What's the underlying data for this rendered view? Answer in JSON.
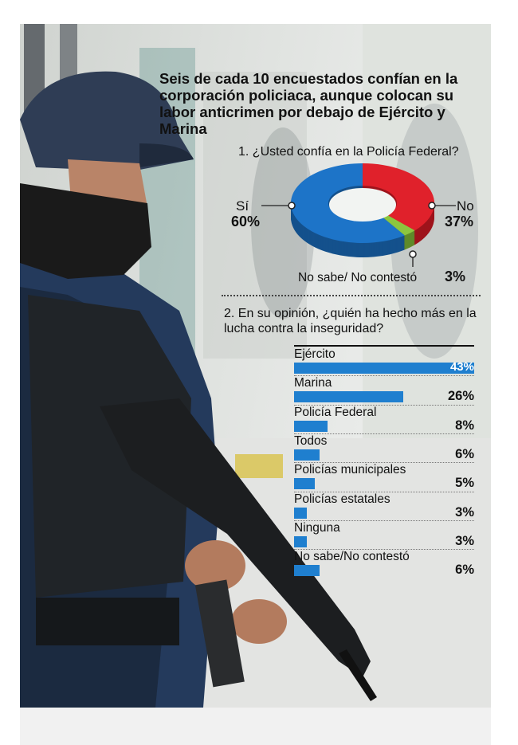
{
  "headline": "Seis de cada 10 encuestados confían en la corporación policiaca, aunque colocan su labor anticrimen por debajo de Ejército y Marina",
  "colors": {
    "si": "#1d74c8",
    "no": "#e0212b",
    "nosabe": "#8cc63f",
    "bar": "#1f7fcf"
  },
  "chart_data": [
    {
      "type": "pie",
      "title": "1. ¿Usted confía en la Policía Federal?",
      "labels": [
        "Sí",
        "No",
        "No sabe/ No contestó"
      ],
      "values": [
        60,
        37,
        3
      ],
      "value_labels": [
        "60%",
        "37%",
        "3%"
      ]
    },
    {
      "type": "bar",
      "title": "2. En su opinión, ¿quién ha hecho más en la lucha contra la inseguridad?",
      "categories": [
        "Ejército",
        "Marina",
        "Policía Federal",
        "Todos",
        "Policías municipales",
        "Policías estatales",
        "Ninguna",
        "No sabe/No contestó"
      ],
      "values": [
        43,
        26,
        8,
        6,
        5,
        3,
        3,
        6
      ],
      "value_labels": [
        "43%",
        "26%",
        "8%",
        "6%",
        "5%",
        "3%",
        "3%",
        "6%"
      ],
      "xlim": [
        0,
        43
      ]
    }
  ]
}
